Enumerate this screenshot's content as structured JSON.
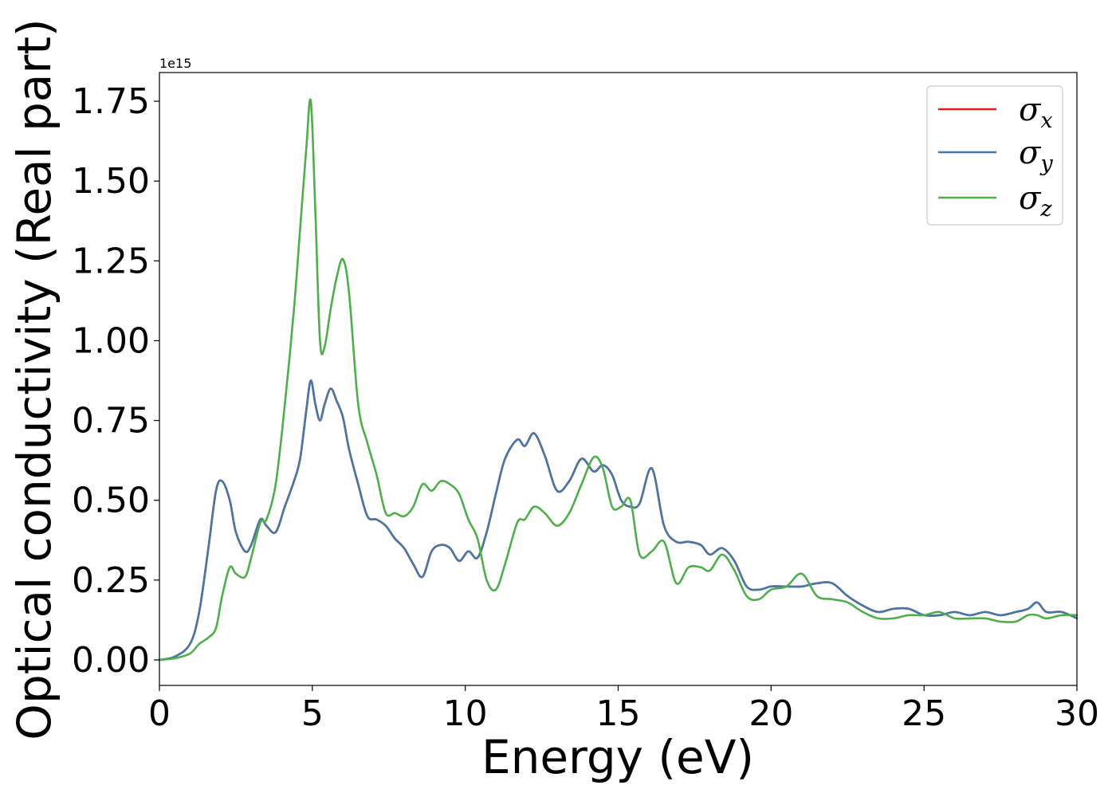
{
  "chart_data": {
    "type": "line",
    "xlabel": "Energy (eV)",
    "ylabel": "Optical conductivity (Real part)",
    "y_offset_label": "1e15",
    "xlim": [
      0,
      30
    ],
    "ylim": [
      -0.08,
      1.84
    ],
    "x_ticks": [
      0,
      5,
      10,
      15,
      20,
      25,
      30
    ],
    "x_tick_labels": [
      "0",
      "5",
      "10",
      "15",
      "20",
      "25",
      "30"
    ],
    "y_ticks": [
      0,
      0.25,
      0.5,
      0.75,
      1.0,
      1.25,
      1.5,
      1.75
    ],
    "y_tick_labels": [
      "0.00",
      "0.25",
      "0.50",
      "0.75",
      "1.00",
      "1.25",
      "1.50",
      "1.75"
    ],
    "grid": false,
    "legend_position": "top-right",
    "series": [
      {
        "name": "σx",
        "symbol": "σ",
        "subscript": "x",
        "color": "#e41a1c",
        "x": [
          0,
          0.5,
          1,
          1.3,
          1.6,
          1.85,
          2.05,
          2.3,
          2.5,
          2.8,
          3.0,
          3.3,
          3.5,
          3.8,
          4.1,
          4.4,
          4.6,
          4.8,
          4.95,
          5.1,
          5.25,
          5.4,
          5.6,
          5.8,
          6.0,
          6.2,
          6.5,
          6.8,
          7.1,
          7.4,
          7.7,
          8.0,
          8.3,
          8.6,
          8.9,
          9.2,
          9.5,
          9.8,
          10.1,
          10.4,
          10.7,
          11.0,
          11.3,
          11.7,
          11.95,
          12.25,
          12.6,
          13.0,
          13.4,
          13.8,
          14.2,
          14.5,
          14.8,
          15.1,
          15.4,
          15.7,
          16.1,
          16.5,
          16.9,
          17.3,
          17.7,
          18.0,
          18.4,
          18.8,
          19.2,
          19.6,
          20.0,
          20.5,
          21.0,
          21.5,
          22.0,
          22.5,
          23.0,
          23.5,
          24.0,
          24.5,
          25.0,
          25.5,
          26.0,
          26.5,
          27.0,
          27.5,
          28.0,
          28.4,
          28.7,
          29.0,
          29.5,
          30.0
        ],
        "y": [
          0.0,
          0.01,
          0.05,
          0.15,
          0.35,
          0.53,
          0.56,
          0.5,
          0.4,
          0.34,
          0.36,
          0.44,
          0.42,
          0.4,
          0.48,
          0.56,
          0.63,
          0.78,
          0.875,
          0.8,
          0.75,
          0.8,
          0.85,
          0.81,
          0.76,
          0.66,
          0.55,
          0.45,
          0.44,
          0.42,
          0.38,
          0.35,
          0.3,
          0.26,
          0.34,
          0.36,
          0.35,
          0.31,
          0.34,
          0.32,
          0.4,
          0.52,
          0.63,
          0.69,
          0.67,
          0.71,
          0.64,
          0.53,
          0.56,
          0.63,
          0.59,
          0.61,
          0.58,
          0.5,
          0.48,
          0.49,
          0.6,
          0.42,
          0.37,
          0.37,
          0.36,
          0.33,
          0.35,
          0.31,
          0.23,
          0.22,
          0.23,
          0.23,
          0.23,
          0.24,
          0.24,
          0.2,
          0.17,
          0.15,
          0.16,
          0.16,
          0.14,
          0.14,
          0.15,
          0.14,
          0.15,
          0.14,
          0.15,
          0.16,
          0.18,
          0.15,
          0.15,
          0.13
        ]
      },
      {
        "name": "σy",
        "symbol": "σ",
        "subscript": "y",
        "color": "#4477aa",
        "x": [
          0,
          0.5,
          1,
          1.3,
          1.6,
          1.85,
          2.05,
          2.3,
          2.5,
          2.8,
          3.0,
          3.3,
          3.5,
          3.8,
          4.1,
          4.4,
          4.6,
          4.8,
          4.95,
          5.1,
          5.25,
          5.4,
          5.6,
          5.8,
          6.0,
          6.2,
          6.5,
          6.8,
          7.1,
          7.4,
          7.7,
          8.0,
          8.3,
          8.6,
          8.9,
          9.2,
          9.5,
          9.8,
          10.1,
          10.4,
          10.7,
          11.0,
          11.3,
          11.7,
          11.95,
          12.25,
          12.6,
          13.0,
          13.4,
          13.8,
          14.2,
          14.5,
          14.8,
          15.1,
          15.4,
          15.7,
          16.1,
          16.5,
          16.9,
          17.3,
          17.7,
          18.0,
          18.4,
          18.8,
          19.2,
          19.6,
          20.0,
          20.5,
          21.0,
          21.5,
          22.0,
          22.5,
          23.0,
          23.5,
          24.0,
          24.5,
          25.0,
          25.5,
          26.0,
          26.5,
          27.0,
          27.5,
          28.0,
          28.4,
          28.7,
          29.0,
          29.5,
          30.0
        ],
        "y": [
          0.0,
          0.01,
          0.05,
          0.15,
          0.35,
          0.53,
          0.56,
          0.5,
          0.4,
          0.34,
          0.36,
          0.44,
          0.42,
          0.4,
          0.48,
          0.56,
          0.63,
          0.78,
          0.875,
          0.8,
          0.75,
          0.8,
          0.85,
          0.81,
          0.76,
          0.66,
          0.55,
          0.45,
          0.44,
          0.42,
          0.38,
          0.35,
          0.3,
          0.26,
          0.34,
          0.36,
          0.35,
          0.31,
          0.34,
          0.32,
          0.4,
          0.52,
          0.63,
          0.69,
          0.67,
          0.71,
          0.64,
          0.53,
          0.56,
          0.63,
          0.59,
          0.61,
          0.58,
          0.5,
          0.48,
          0.49,
          0.6,
          0.42,
          0.37,
          0.37,
          0.36,
          0.33,
          0.35,
          0.31,
          0.23,
          0.22,
          0.23,
          0.23,
          0.23,
          0.24,
          0.24,
          0.2,
          0.17,
          0.15,
          0.16,
          0.16,
          0.14,
          0.14,
          0.15,
          0.14,
          0.15,
          0.14,
          0.15,
          0.16,
          0.18,
          0.15,
          0.15,
          0.13
        ]
      },
      {
        "name": "σz",
        "symbol": "σ",
        "subscript": "z",
        "color": "#4daf4a",
        "x": [
          0,
          0.5,
          1,
          1.3,
          1.6,
          1.85,
          2.05,
          2.3,
          2.5,
          2.8,
          3.0,
          3.3,
          3.5,
          3.8,
          4.1,
          4.4,
          4.6,
          4.8,
          4.95,
          5.1,
          5.25,
          5.4,
          5.6,
          5.8,
          6.0,
          6.2,
          6.5,
          6.8,
          7.1,
          7.4,
          7.7,
          8.0,
          8.3,
          8.6,
          8.9,
          9.2,
          9.5,
          9.8,
          10.1,
          10.4,
          10.7,
          11.0,
          11.3,
          11.7,
          11.95,
          12.25,
          12.6,
          13.0,
          13.4,
          13.8,
          14.2,
          14.5,
          14.8,
          15.1,
          15.4,
          15.7,
          16.1,
          16.5,
          16.9,
          17.3,
          17.7,
          18.0,
          18.4,
          18.8,
          19.2,
          19.6,
          20.0,
          20.5,
          21.0,
          21.5,
          22.0,
          22.5,
          23.0,
          23.5,
          24.0,
          24.5,
          25.0,
          25.5,
          26.0,
          26.5,
          27.0,
          27.5,
          28.0,
          28.4,
          28.7,
          29.0,
          29.5,
          30.0
        ],
        "y": [
          0.0,
          0.005,
          0.02,
          0.05,
          0.07,
          0.1,
          0.2,
          0.29,
          0.27,
          0.26,
          0.32,
          0.43,
          0.44,
          0.55,
          0.8,
          1.1,
          1.35,
          1.6,
          1.75,
          1.4,
          1.0,
          0.98,
          1.1,
          1.2,
          1.255,
          1.15,
          0.8,
          0.68,
          0.58,
          0.46,
          0.46,
          0.45,
          0.48,
          0.55,
          0.53,
          0.56,
          0.55,
          0.52,
          0.44,
          0.38,
          0.25,
          0.22,
          0.3,
          0.43,
          0.44,
          0.48,
          0.46,
          0.42,
          0.46,
          0.55,
          0.635,
          0.6,
          0.48,
          0.48,
          0.5,
          0.33,
          0.34,
          0.37,
          0.24,
          0.29,
          0.29,
          0.28,
          0.33,
          0.28,
          0.2,
          0.19,
          0.22,
          0.23,
          0.27,
          0.2,
          0.19,
          0.18,
          0.15,
          0.13,
          0.13,
          0.14,
          0.14,
          0.15,
          0.13,
          0.13,
          0.13,
          0.12,
          0.12,
          0.14,
          0.14,
          0.13,
          0.14,
          0.14
        ]
      }
    ]
  }
}
